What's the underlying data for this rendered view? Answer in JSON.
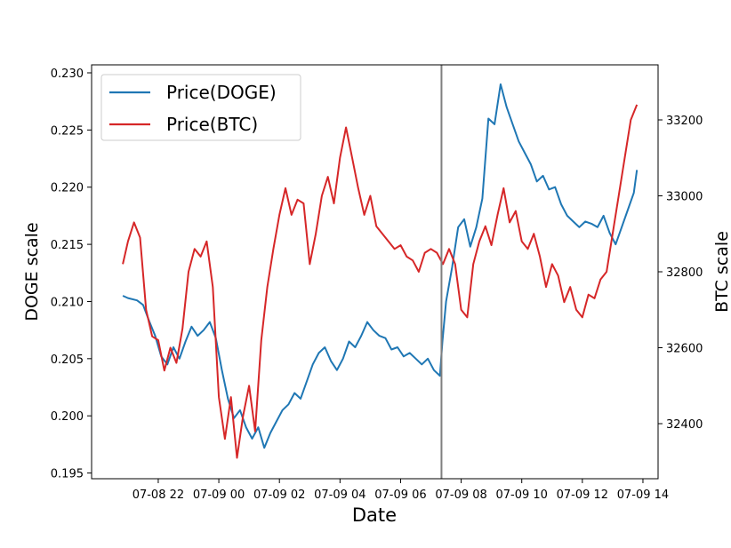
{
  "chart_data": {
    "type": "line",
    "xlabel": "Date",
    "x_ticks": [
      "07-08 22",
      "07-09 00",
      "07-09 02",
      "07-09 04",
      "07-09 06",
      "07-09 08",
      "07-09 10",
      "07-09 12",
      "07-09 14"
    ],
    "x_tick_hours": [
      22,
      24,
      26,
      28,
      30,
      32,
      34,
      36,
      38
    ],
    "xlim_hours": [
      19.8,
      38.5
    ],
    "x_unit_note": "hours since 07-08 00:00",
    "y_left": {
      "label": "DOGE scale",
      "lim": [
        0.1945,
        0.2307
      ],
      "ticks": [
        "0.195",
        "0.200",
        "0.205",
        "0.210",
        "0.215",
        "0.220",
        "0.225",
        "0.230"
      ]
    },
    "y_right": {
      "label": "BTC scale",
      "lim": [
        32255,
        33345
      ],
      "ticks": [
        "32400",
        "32600",
        "32800",
        "33000",
        "33200"
      ]
    },
    "vline_hour": 31.35,
    "legend_position": "top-left",
    "series": [
      {
        "name": "Price(DOGE)",
        "axis": "left",
        "color": "#1f77b4",
        "x": [
          20.83,
          21.0,
          21.3,
          21.5,
          21.7,
          21.9,
          22.1,
          22.3,
          22.5,
          22.7,
          22.9,
          23.1,
          23.3,
          23.5,
          23.7,
          23.9,
          24.1,
          24.3,
          24.5,
          24.7,
          24.9,
          25.1,
          25.3,
          25.5,
          25.7,
          25.9,
          26.1,
          26.3,
          26.5,
          26.7,
          26.9,
          27.1,
          27.3,
          27.5,
          27.7,
          27.9,
          28.1,
          28.3,
          28.5,
          28.7,
          28.9,
          29.1,
          29.3,
          29.5,
          29.7,
          29.9,
          30.1,
          30.3,
          30.5,
          30.7,
          30.9,
          31.1,
          31.3,
          31.38,
          31.5,
          31.7,
          31.9,
          32.1,
          32.3,
          32.5,
          32.7,
          32.9,
          33.1,
          33.3,
          33.5,
          33.7,
          33.9,
          34.1,
          34.3,
          34.5,
          34.7,
          34.9,
          35.1,
          35.3,
          35.5,
          35.7,
          35.9,
          36.1,
          36.3,
          36.5,
          36.7,
          36.9,
          37.1,
          37.3,
          37.5,
          37.7,
          37.8
        ],
        "values": [
          0.2105,
          0.2103,
          0.2101,
          0.2097,
          0.2083,
          0.207,
          0.2052,
          0.2045,
          0.206,
          0.205,
          0.2065,
          0.2078,
          0.207,
          0.2075,
          0.2082,
          0.2068,
          0.204,
          0.2015,
          0.1998,
          0.2005,
          0.199,
          0.198,
          0.199,
          0.1972,
          0.1985,
          0.1995,
          0.2005,
          0.201,
          0.202,
          0.2015,
          0.203,
          0.2045,
          0.2055,
          0.206,
          0.2048,
          0.204,
          0.205,
          0.2065,
          0.206,
          0.207,
          0.2082,
          0.2075,
          0.207,
          0.2068,
          0.2058,
          0.206,
          0.2052,
          0.2055,
          0.205,
          0.2045,
          0.205,
          0.204,
          0.2035,
          0.2065,
          0.21,
          0.213,
          0.2165,
          0.2172,
          0.2148,
          0.2165,
          0.219,
          0.226,
          0.2255,
          0.229,
          0.227,
          0.2255,
          0.224,
          0.223,
          0.222,
          0.2205,
          0.221,
          0.2198,
          0.22,
          0.2185,
          0.2175,
          0.217,
          0.2165,
          0.217,
          0.2168,
          0.2165,
          0.2175,
          0.216,
          0.215,
          0.2165,
          0.218,
          0.2195,
          0.2215
        ]
      },
      {
        "name": "Price(BTC)",
        "axis": "right",
        "color": "#d62728",
        "x": [
          20.83,
          21.0,
          21.2,
          21.4,
          21.6,
          21.8,
          22.0,
          22.2,
          22.4,
          22.6,
          22.8,
          23.0,
          23.2,
          23.4,
          23.6,
          23.8,
          24.0,
          24.2,
          24.4,
          24.6,
          24.8,
          25.0,
          25.2,
          25.4,
          25.6,
          25.8,
          26.0,
          26.2,
          26.4,
          26.6,
          26.8,
          27.0,
          27.2,
          27.4,
          27.6,
          27.8,
          28.0,
          28.2,
          28.4,
          28.6,
          28.8,
          29.0,
          29.2,
          29.4,
          29.6,
          29.8,
          30.0,
          30.2,
          30.4,
          30.6,
          30.8,
          31.0,
          31.2,
          31.4,
          31.6,
          31.8,
          32.0,
          32.2,
          32.4,
          32.6,
          32.8,
          33.0,
          33.2,
          33.4,
          33.6,
          33.8,
          34.0,
          34.2,
          34.4,
          34.6,
          34.8,
          35.0,
          35.2,
          35.4,
          35.6,
          35.8,
          36.0,
          36.2,
          36.4,
          36.6,
          36.8,
          37.0,
          37.2,
          37.4,
          37.6,
          37.8
        ],
        "values": [
          32820,
          32880,
          32930,
          32890,
          32700,
          32630,
          32620,
          32540,
          32600,
          32560,
          32650,
          32800,
          32860,
          32840,
          32880,
          32760,
          32470,
          32360,
          32470,
          32310,
          32420,
          32500,
          32380,
          32620,
          32760,
          32860,
          32950,
          33020,
          32950,
          32990,
          32980,
          32820,
          32900,
          33000,
          33050,
          32980,
          33100,
          33180,
          33100,
          33020,
          32950,
          33000,
          32920,
          32900,
          32880,
          32860,
          32870,
          32840,
          32830,
          32800,
          32850,
          32860,
          32850,
          32820,
          32860,
          32820,
          32700,
          32680,
          32820,
          32880,
          32920,
          32870,
          32950,
          33020,
          32930,
          32960,
          32880,
          32860,
          32900,
          32840,
          32760,
          32820,
          32790,
          32720,
          32760,
          32700,
          32680,
          32740,
          32730,
          32780,
          32800,
          32900,
          33000,
          33100,
          33200,
          33240
        ]
      }
    ]
  }
}
